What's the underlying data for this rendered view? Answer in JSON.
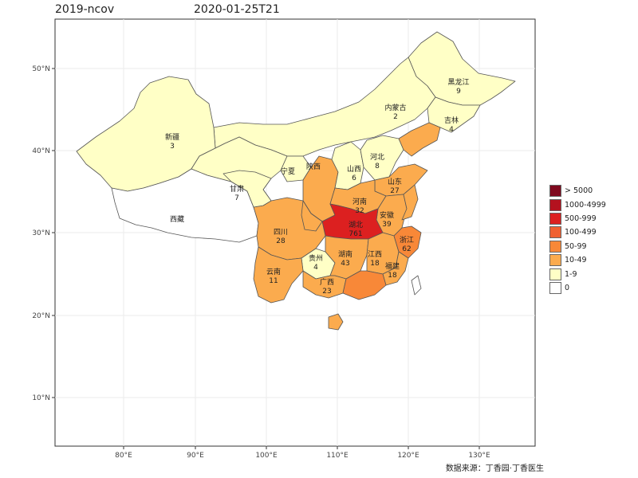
{
  "header": {
    "left_title": "2019-ncov",
    "right_title": "2020-01-25T21"
  },
  "axes": {
    "x_ticks": [
      "80°E",
      "90°E",
      "100°E",
      "110°E",
      "120°E",
      "130°E"
    ],
    "y_ticks": [
      "50°N",
      "40°N",
      "30°N",
      "20°N",
      "10°N"
    ]
  },
  "legend": {
    "items": [
      {
        "label": "> 5000",
        "color": "#7f0a1f"
      },
      {
        "label": "1000-4999",
        "color": "#b4121f"
      },
      {
        "label": "500-999",
        "color": "#dc2020"
      },
      {
        "label": "100-499",
        "color": "#f06030"
      },
      {
        "label": "50-99",
        "color": "#f88838"
      },
      {
        "label": "10-49",
        "color": "#fbab4e"
      },
      {
        "label": "1-9",
        "color": "#ffffc6"
      },
      {
        "label": "0",
        "color": "#ffffff"
      }
    ]
  },
  "regions": [
    {
      "name": "黑龙江",
      "count": "9",
      "color": "#ffffc6"
    },
    {
      "name": "内蒙古",
      "count": "2",
      "color": "#ffffc6"
    },
    {
      "name": "吉林",
      "count": "4",
      "color": "#ffffc6"
    },
    {
      "name": "新疆",
      "count": "3",
      "color": "#ffffc6"
    },
    {
      "name": "西藏",
      "count": "",
      "color": "#ffffff"
    },
    {
      "name": "甘肃",
      "count": "7",
      "color": "#ffffc6"
    },
    {
      "name": "宁夏",
      "count": "",
      "color": "#ffffc6"
    },
    {
      "name": "陕西",
      "count": "",
      "color": "#fbab4e"
    },
    {
      "name": "山西",
      "count": "6",
      "color": "#ffffc6"
    },
    {
      "name": "河北",
      "count": "8",
      "color": "#ffffc6"
    },
    {
      "name": "山东",
      "count": "27",
      "color": "#fbab4e"
    },
    {
      "name": "河南",
      "count": "32",
      "color": "#fbab4e"
    },
    {
      "name": "安徽",
      "count": "39",
      "color": "#fbab4e"
    },
    {
      "name": "湖北",
      "count": "761",
      "color": "#dc2020"
    },
    {
      "name": "四川",
      "count": "28",
      "color": "#fbab4e"
    },
    {
      "name": "贵州",
      "count": "4",
      "color": "#ffffc6"
    },
    {
      "name": "湖南",
      "count": "43",
      "color": "#fbab4e"
    },
    {
      "name": "江西",
      "count": "18",
      "color": "#fbab4e"
    },
    {
      "name": "浙江",
      "count": "62",
      "color": "#f88838"
    },
    {
      "name": "福建",
      "count": "18",
      "color": "#fbab4e"
    },
    {
      "name": "云南",
      "count": "11",
      "color": "#fbab4e"
    },
    {
      "name": "广西",
      "count": "23",
      "color": "#fbab4e"
    }
  ],
  "caption": "数据来源：丁香园·丁香医生"
}
